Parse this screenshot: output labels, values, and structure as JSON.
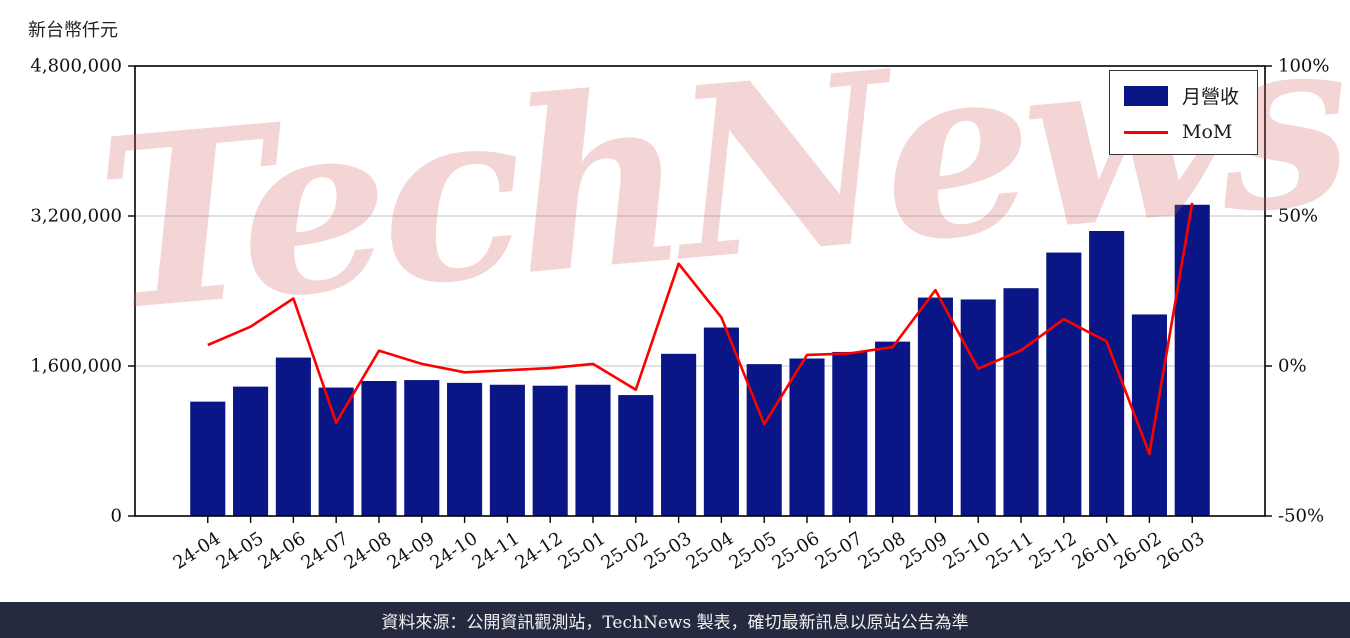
{
  "page": {
    "unit_label": "新台幣仟元",
    "watermark": "TechNews",
    "watermark_color": "#d25f5f",
    "footer": "資料來源：公開資訊觀測站，TechNews 製表，確切最新訊息以原站公告為準",
    "footer_bg": "#252a40"
  },
  "chart_data": {
    "type": "bar",
    "title": "",
    "xlabel": "",
    "ylabel_left": "新台幣仟元",
    "ylabel_right": "%",
    "grid": true,
    "legend_position": "top-right",
    "categories": [
      "24-04",
      "24-05",
      "24-06",
      "24-07",
      "24-08",
      "24-09",
      "24-10",
      "24-11",
      "24-12",
      "25-01",
      "25-02",
      "25-03",
      "25-04",
      "25-05",
      "25-06",
      "25-07",
      "25-08",
      "25-09",
      "25-10",
      "25-11",
      "25-12",
      "26-01",
      "26-02",
      "26-03"
    ],
    "series": [
      {
        "name": "月營收",
        "type": "bar",
        "axis": "left",
        "color": "#0a1685",
        "values": [
          1220000,
          1380000,
          1690000,
          1370000,
          1440000,
          1450000,
          1420000,
          1400000,
          1390000,
          1400000,
          1290000,
          1730000,
          2010000,
          1620000,
          1680000,
          1750000,
          1860000,
          2330000,
          2310000,
          2430000,
          2810000,
          3040000,
          2150000,
          3320000
        ]
      },
      {
        "name": "MoM",
        "type": "line",
        "axis": "right",
        "color": "#ff0000",
        "values": [
          7.0,
          13.1,
          22.5,
          -18.9,
          5.1,
          0.7,
          -2.1,
          -1.4,
          -0.7,
          0.7,
          -7.9,
          34.1,
          16.2,
          -19.4,
          3.7,
          4.2,
          6.3,
          25.3,
          -0.9,
          5.2,
          15.6,
          8.2,
          -29.3,
          54.4
        ]
      }
    ],
    "left_axis": {
      "range": [
        0,
        4800000
      ],
      "ticks": [
        0,
        1600000,
        3200000,
        4800000
      ],
      "tick_labels": [
        "0",
        "1,600,000",
        "3,200,000",
        "4,800,000"
      ]
    },
    "right_axis": {
      "range": [
        -50,
        100
      ],
      "ticks": [
        -50,
        0,
        50,
        100
      ],
      "tick_labels": [
        "-50%",
        "0%",
        "50%",
        "100%"
      ]
    }
  }
}
